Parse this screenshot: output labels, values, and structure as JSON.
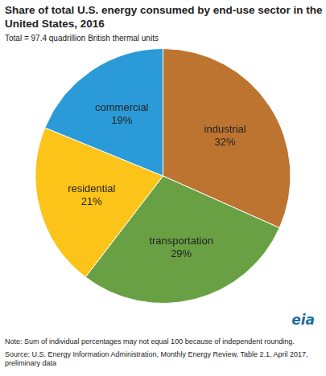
{
  "chart_data": {
    "type": "pie",
    "title": "Share of total U.S. energy consumed by end-use sector in the United States, 2016",
    "subtitle": "Total = 97.4 quadrillion British thermal units",
    "categories": [
      "industrial",
      "transportation",
      "residential",
      "commercial"
    ],
    "values": [
      32,
      29,
      21,
      19
    ],
    "value_labels": [
      "32%",
      "29%",
      "21%",
      "19%"
    ],
    "colors": [
      "#bd7430",
      "#69a043",
      "#fcc419",
      "#2a9bd8"
    ],
    "data_labels": true,
    "note": "Note: Sum of individual percentages may not equal 100 because of independent rounding.",
    "source": "Source: U.S. Energy Information Administration, Monthly Energy Review, Table 2.1, April 2017, preliminary data",
    "logo": "eia"
  }
}
